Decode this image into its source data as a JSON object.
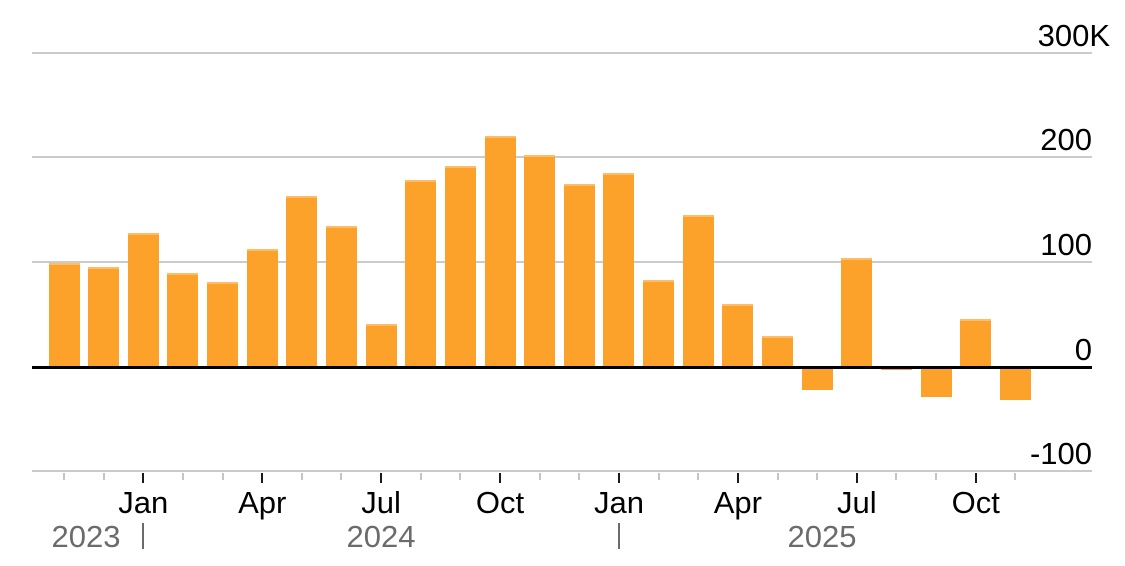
{
  "chart_data": {
    "type": "bar",
    "title": "",
    "xlabel": "",
    "ylabel": "",
    "unit": "thousands (K)",
    "x": [
      "Nov 2023",
      "Dec 2023",
      "Jan 2024",
      "Feb 2024",
      "Mar 2024",
      "Apr 2024",
      "May 2024",
      "Jun 2024",
      "Jul 2024",
      "Aug 2024",
      "Sep 2024",
      "Oct 2024",
      "Nov 2024",
      "Dec 2024",
      "Jan 2025",
      "Feb 2025",
      "Mar 2025",
      "Apr 2025",
      "May 2025",
      "Jun 2025",
      "Jul 2025",
      "Aug 2025",
      "Sep 2025",
      "Oct 2025",
      "Nov 2025"
    ],
    "values": [
      99,
      95,
      128,
      90,
      81,
      112,
      163,
      134,
      41,
      178,
      192,
      220,
      202,
      175,
      185,
      83,
      145,
      60,
      29,
      -22,
      104,
      -3,
      -29,
      46,
      -32
    ],
    "ylim": [
      -100,
      300
    ],
    "grid": "on",
    "legend": "none",
    "y_ticks": [
      {
        "value": 300,
        "label": "300K"
      },
      {
        "value": 200,
        "label": "200"
      },
      {
        "value": 100,
        "label": "100"
      },
      {
        "value": 0,
        "label": "0"
      },
      {
        "value": -100,
        "label": "-100"
      }
    ],
    "x_month_ticks": [
      {
        "label": "Jan",
        "index": 2
      },
      {
        "label": "Apr",
        "index": 5
      },
      {
        "label": "Jul",
        "index": 8
      },
      {
        "label": "Oct",
        "index": 11
      },
      {
        "label": "Jan",
        "index": 14
      },
      {
        "label": "Apr",
        "index": 17
      },
      {
        "label": "Jul",
        "index": 20
      },
      {
        "label": "Oct",
        "index": 23
      }
    ],
    "year_labels": [
      {
        "label": "2023",
        "x": 86
      },
      {
        "label": "2024",
        "x": 381
      },
      {
        "label": "2025",
        "x": 822
      }
    ],
    "year_divider_indices": [
      2,
      14
    ],
    "colors": {
      "bar": "#FCA22B",
      "gridline": "#CBCBCB",
      "zero_line": "#000000",
      "axis_line": "#CBCBCB",
      "tick_major": "#1A1A1A",
      "tick_minor": "#C5C5C5",
      "axis_text": "#000000",
      "year_text": "#6B6B6B"
    }
  }
}
